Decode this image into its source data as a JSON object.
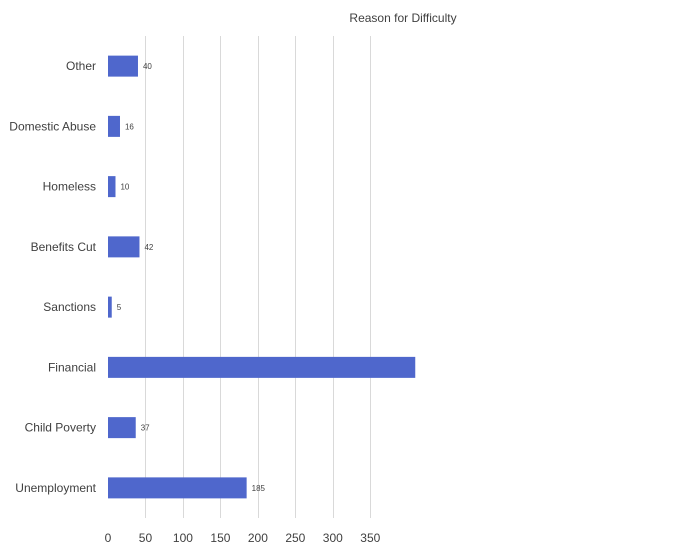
{
  "chart_data": {
    "type": "bar",
    "orientation": "horizontal",
    "title": "Reason for Difficulty",
    "categories": [
      "Other",
      "Domestic Abuse",
      "Homeless",
      "Benefits Cut",
      "Sanctions",
      "Financial",
      "Child Poverty",
      "Unemployment"
    ],
    "values": [
      40,
      16,
      10,
      42,
      5,
      410,
      37,
      185
    ],
    "data_labels": [
      "40",
      "16",
      "10",
      "42",
      "5",
      "",
      "37",
      "185"
    ],
    "xlim": [
      0,
      400
    ],
    "xticks": [
      0,
      50,
      100,
      150,
      200,
      250,
      300,
      350
    ],
    "xtick_labels": [
      "0",
      "50",
      "100",
      "150",
      "200",
      "250",
      "300",
      "350"
    ],
    "xlabel": "",
    "ylabel": "",
    "grid": "vertical",
    "legend": "none",
    "bar_color": "#4f67cc"
  }
}
